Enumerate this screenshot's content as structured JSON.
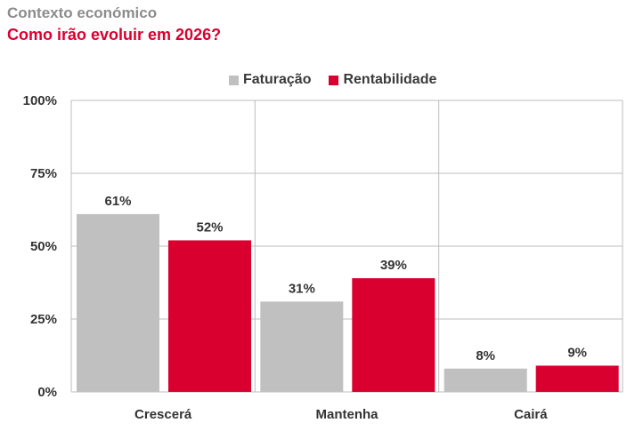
{
  "header": {
    "kicker": "Contexto económico",
    "title": "Como irão evoluir em 2026?"
  },
  "colors": {
    "faturacao": "#c0c0c0",
    "rentabilidade": "#d9002f",
    "kicker": "#8c8c8c",
    "title": "#d9002f"
  },
  "chart_data": {
    "type": "bar",
    "categories": [
      "Crescerá",
      "Mantenha",
      "Cairá"
    ],
    "series": [
      {
        "name": "Faturação",
        "values": [
          61,
          31,
          8
        ],
        "labels": [
          "61%",
          "31%",
          "8%"
        ]
      },
      {
        "name": "Rentabilidade",
        "values": [
          52,
          39,
          9
        ],
        "labels": [
          "52%",
          "39%",
          "9%"
        ]
      }
    ],
    "ylim": [
      0,
      100
    ],
    "yticks": [
      0,
      25,
      50,
      75,
      100
    ],
    "ytick_labels": [
      "0%",
      "25%",
      "50%",
      "75%",
      "100%"
    ],
    "grid": true,
    "legend_position": "top-center",
    "title": "",
    "xlabel": "",
    "ylabel": ""
  }
}
